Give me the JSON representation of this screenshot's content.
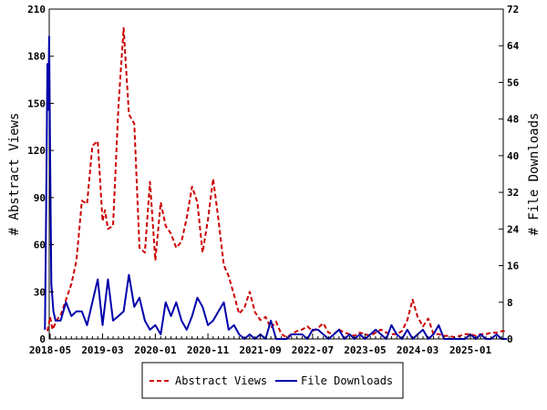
{
  "chart_data": {
    "type": "line",
    "x_tick_labels": [
      "2018-05",
      "2019-03",
      "2020-01",
      "2020-11",
      "2021-09",
      "2022-07",
      "2023-05",
      "2024-03",
      "2025-01"
    ],
    "y_left": {
      "label": "# Abstract Views",
      "ylim": [
        0,
        210
      ],
      "ticks": [
        0,
        30,
        60,
        90,
        120,
        150,
        180,
        210
      ]
    },
    "y_right": {
      "label": "# File Downloads",
      "ylim": [
        0,
        72
      ],
      "ticks": [
        0,
        8,
        16,
        24,
        32,
        40,
        48,
        56,
        64,
        72
      ]
    },
    "legend_position": "bottom-center",
    "grid": false,
    "series": [
      {
        "name": "Abstract Views",
        "axis": "left",
        "color": "#cc0000",
        "style": "dashed",
        "points": [
          [
            "2018-04-15",
            5
          ],
          [
            "2018-05-01",
            14
          ],
          [
            "2018-05-15",
            6
          ],
          [
            "2018-06-01",
            10
          ],
          [
            "2018-06-15",
            13
          ],
          [
            "2018-07-01",
            15
          ],
          [
            "2018-08-01",
            25
          ],
          [
            "2018-09-01",
            35
          ],
          [
            "2018-10-01",
            50
          ],
          [
            "2018-11-01",
            88
          ],
          [
            "2018-12-01",
            86
          ],
          [
            "2019-01-01",
            123
          ],
          [
            "2019-02-01",
            126
          ],
          [
            "2019-03-01",
            75
          ],
          [
            "2019-03-15",
            82
          ],
          [
            "2019-04-01",
            70
          ],
          [
            "2019-05-01",
            72
          ],
          [
            "2019-06-01",
            148
          ],
          [
            "2019-07-01",
            198
          ],
          [
            "2019-08-01",
            143
          ],
          [
            "2019-09-01",
            137
          ],
          [
            "2019-10-01",
            58
          ],
          [
            "2019-11-01",
            55
          ],
          [
            "2019-12-01",
            100
          ],
          [
            "2020-01-01",
            50
          ],
          [
            "2020-02-01",
            87
          ],
          [
            "2020-03-01",
            72
          ],
          [
            "2020-04-01",
            67
          ],
          [
            "2020-05-01",
            58
          ],
          [
            "2020-06-01",
            62
          ],
          [
            "2020-07-01",
            77
          ],
          [
            "2020-08-01",
            97
          ],
          [
            "2020-09-01",
            87
          ],
          [
            "2020-10-01",
            55
          ],
          [
            "2020-11-01",
            76
          ],
          [
            "2020-12-01",
            102
          ],
          [
            "2021-01-01",
            76
          ],
          [
            "2021-02-01",
            47
          ],
          [
            "2021-03-01",
            40
          ],
          [
            "2021-04-01",
            28
          ],
          [
            "2021-05-01",
            16
          ],
          [
            "2021-06-01",
            20
          ],
          [
            "2021-07-01",
            30
          ],
          [
            "2021-08-01",
            17
          ],
          [
            "2021-09-01",
            12
          ],
          [
            "2021-10-01",
            14
          ],
          [
            "2021-11-01",
            7
          ],
          [
            "2021-12-01",
            11
          ],
          [
            "2022-01-01",
            3
          ],
          [
            "2022-02-01",
            1
          ],
          [
            "2022-03-01",
            3
          ],
          [
            "2022-04-01",
            5
          ],
          [
            "2022-05-01",
            6
          ],
          [
            "2022-06-01",
            8
          ],
          [
            "2022-07-01",
            5
          ],
          [
            "2022-08-01",
            7
          ],
          [
            "2022-09-01",
            10
          ],
          [
            "2022-10-01",
            4
          ],
          [
            "2022-11-01",
            3
          ],
          [
            "2022-12-01",
            6
          ],
          [
            "2023-01-01",
            4
          ],
          [
            "2023-02-01",
            3
          ],
          [
            "2023-03-01",
            2
          ],
          [
            "2023-04-01",
            4
          ],
          [
            "2023-05-01",
            3
          ],
          [
            "2023-06-01",
            2
          ],
          [
            "2023-07-01",
            4
          ],
          [
            "2023-08-01",
            6
          ],
          [
            "2023-09-01",
            4
          ],
          [
            "2023-10-01",
            3
          ],
          [
            "2023-11-01",
            3
          ],
          [
            "2023-12-01",
            5
          ],
          [
            "2024-01-01",
            12
          ],
          [
            "2024-02-01",
            25
          ],
          [
            "2024-03-01",
            14
          ],
          [
            "2024-04-01",
            8
          ],
          [
            "2024-05-01",
            13
          ],
          [
            "2024-06-01",
            3
          ],
          [
            "2024-07-01",
            3
          ],
          [
            "2024-08-01",
            2
          ],
          [
            "2024-09-01",
            2
          ],
          [
            "2024-10-01",
            1
          ],
          [
            "2024-11-01",
            2
          ],
          [
            "2024-12-01",
            3
          ],
          [
            "2025-01-01",
            3
          ],
          [
            "2025-02-01",
            2
          ],
          [
            "2025-03-01",
            3
          ],
          [
            "2025-04-01",
            3
          ],
          [
            "2025-05-01",
            4
          ],
          [
            "2025-06-01",
            4
          ],
          [
            "2025-07-01",
            5
          ],
          [
            "2025-08-01",
            5
          ]
        ]
      },
      {
        "name": "File Downloads",
        "axis": "right",
        "color": "#0000aa",
        "style": "solid",
        "points": [
          [
            "2018-04-01",
            2
          ],
          [
            "2018-04-08",
            28
          ],
          [
            "2018-04-15",
            60
          ],
          [
            "2018-04-20",
            50
          ],
          [
            "2018-04-25",
            66
          ],
          [
            "2018-05-01",
            40
          ],
          [
            "2018-05-08",
            12
          ],
          [
            "2018-05-20",
            6
          ],
          [
            "2018-06-01",
            4
          ],
          [
            "2018-07-01",
            4
          ],
          [
            "2018-08-01",
            8
          ],
          [
            "2018-09-01",
            5
          ],
          [
            "2018-10-01",
            6
          ],
          [
            "2018-11-01",
            6
          ],
          [
            "2018-12-01",
            3
          ],
          [
            "2019-01-01",
            8
          ],
          [
            "2019-02-01",
            13
          ],
          [
            "2019-03-01",
            3
          ],
          [
            "2019-04-01",
            13
          ],
          [
            "2019-05-01",
            4
          ],
          [
            "2019-06-01",
            5
          ],
          [
            "2019-07-01",
            6
          ],
          [
            "2019-08-01",
            14
          ],
          [
            "2019-09-01",
            7
          ],
          [
            "2019-10-01",
            9
          ],
          [
            "2019-11-01",
            4
          ],
          [
            "2019-12-01",
            2
          ],
          [
            "2020-01-01",
            3
          ],
          [
            "2020-02-01",
            1
          ],
          [
            "2020-03-01",
            8
          ],
          [
            "2020-04-01",
            5
          ],
          [
            "2020-05-01",
            8
          ],
          [
            "2020-06-01",
            4
          ],
          [
            "2020-07-01",
            2
          ],
          [
            "2020-08-01",
            5
          ],
          [
            "2020-09-01",
            9
          ],
          [
            "2020-10-01",
            7
          ],
          [
            "2020-11-01",
            3
          ],
          [
            "2020-12-01",
            4
          ],
          [
            "2021-01-01",
            6
          ],
          [
            "2021-02-01",
            8
          ],
          [
            "2021-03-01",
            2
          ],
          [
            "2021-04-01",
            3
          ],
          [
            "2021-05-01",
            1
          ],
          [
            "2021-06-01",
            0
          ],
          [
            "2021-07-01",
            1
          ],
          [
            "2021-08-01",
            0
          ],
          [
            "2021-09-01",
            1
          ],
          [
            "2021-10-01",
            0
          ],
          [
            "2021-11-01",
            4
          ],
          [
            "2021-12-01",
            0
          ],
          [
            "2022-01-01",
            0
          ],
          [
            "2022-02-01",
            0
          ],
          [
            "2022-03-01",
            1
          ],
          [
            "2022-04-01",
            1
          ],
          [
            "2022-05-01",
            1
          ],
          [
            "2022-06-01",
            0
          ],
          [
            "2022-07-01",
            2
          ],
          [
            "2022-08-01",
            2
          ],
          [
            "2022-09-01",
            1
          ],
          [
            "2022-10-01",
            0
          ],
          [
            "2022-11-01",
            1
          ],
          [
            "2022-12-01",
            2
          ],
          [
            "2023-01-01",
            0
          ],
          [
            "2023-02-01",
            1
          ],
          [
            "2023-03-01",
            0
          ],
          [
            "2023-04-01",
            1
          ],
          [
            "2023-05-01",
            0
          ],
          [
            "2023-06-01",
            1
          ],
          [
            "2023-07-01",
            2
          ],
          [
            "2023-08-01",
            1
          ],
          [
            "2023-09-01",
            0
          ],
          [
            "2023-10-01",
            3
          ],
          [
            "2023-11-01",
            1
          ],
          [
            "2023-12-01",
            0
          ],
          [
            "2024-01-01",
            2
          ],
          [
            "2024-02-01",
            0
          ],
          [
            "2024-03-01",
            1
          ],
          [
            "2024-04-01",
            2
          ],
          [
            "2024-05-01",
            0
          ],
          [
            "2024-06-01",
            1
          ],
          [
            "2024-07-01",
            3
          ],
          [
            "2024-08-01",
            0
          ],
          [
            "2024-09-01",
            0
          ],
          [
            "2024-10-01",
            0
          ],
          [
            "2024-11-01",
            0
          ],
          [
            "2024-12-01",
            0
          ],
          [
            "2025-01-01",
            1
          ],
          [
            "2025-02-01",
            0
          ],
          [
            "2025-03-01",
            1
          ],
          [
            "2025-04-01",
            0
          ],
          [
            "2025-05-01",
            0
          ],
          [
            "2025-06-01",
            1
          ],
          [
            "2025-07-01",
            0
          ],
          [
            "2025-08-01",
            0
          ]
        ]
      }
    ]
  }
}
